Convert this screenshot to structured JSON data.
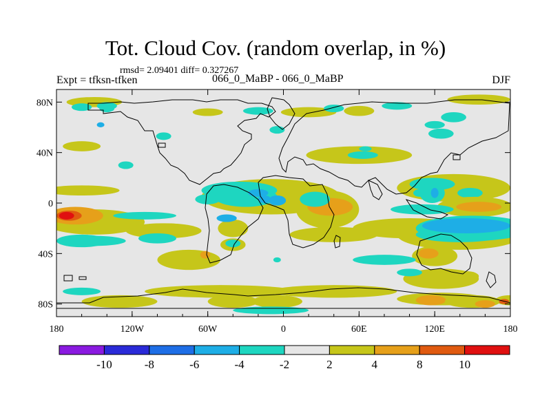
{
  "figure": {
    "title": "Tot. Cloud Cov. (random overlap, in %)",
    "subtitle": "rmsd= 2.09401 diff= 0.327267",
    "left_label": "Expt = tfksn-tfken",
    "center_label": "066_0_MaBP - 066_0_MaBP",
    "right_label": "DJF"
  },
  "map": {
    "projection": "cylindrical-equidistant",
    "lon_range": [
      -180,
      180
    ],
    "lat_range": [
      -90,
      90
    ],
    "lon_ticks": [
      {
        "value": -180,
        "label": "180"
      },
      {
        "value": -120,
        "label": "120W"
      },
      {
        "value": -60,
        "label": "60W"
      },
      {
        "value": 0,
        "label": "0"
      },
      {
        "value": 60,
        "label": "60E"
      },
      {
        "value": 120,
        "label": "120E"
      },
      {
        "value": 180,
        "label": "180"
      }
    ],
    "lat_ticks": [
      {
        "value": 80,
        "label": "80N"
      },
      {
        "value": 40,
        "label": "40N"
      },
      {
        "value": 0,
        "label": "0"
      },
      {
        "value": -40,
        "label": "40S"
      },
      {
        "value": -80,
        "label": "80S"
      }
    ],
    "background_color": "#e6e6e6",
    "coastline_color": "#000000"
  },
  "colorbar": {
    "colors": [
      "#8a1ae0",
      "#2a2ad8",
      "#1e6ee6",
      "#1eaee6",
      "#1ed6c0",
      "#e6e6e6",
      "#c6c61a",
      "#e6a01a",
      "#e05a10",
      "#e01010"
    ],
    "labels": [
      {
        "boundary": 1,
        "text": "-10"
      },
      {
        "boundary": 2,
        "text": "-8"
      },
      {
        "boundary": 3,
        "text": "-6"
      },
      {
        "boundary": 4,
        "text": "-4"
      },
      {
        "boundary": 5,
        "text": "-2"
      },
      {
        "boundary": 6,
        "text": "2"
      },
      {
        "boundary": 7,
        "text": "4"
      },
      {
        "boundary": 8,
        "text": "8"
      },
      {
        "boundary": 9,
        "text": "10"
      }
    ]
  },
  "field": {
    "blobs": [
      {
        "lon": 155,
        "lat": 82,
        "rx": 25,
        "ry": 4,
        "level": 6
      },
      {
        "lon": -150,
        "lat": 80,
        "rx": 22,
        "ry": 4,
        "level": 6
      },
      {
        "lon": -160,
        "lat": 76,
        "rx": 8,
        "ry": 3,
        "level": 4
      },
      {
        "lon": -140,
        "lat": 77,
        "rx": 8,
        "ry": 3,
        "level": 4
      },
      {
        "lon": -60,
        "lat": 72,
        "rx": 12,
        "ry": 3,
        "level": 6
      },
      {
        "lon": 20,
        "lat": 72,
        "rx": 22,
        "ry": 4,
        "level": 6
      },
      {
        "lon": 60,
        "lat": 73,
        "rx": 12,
        "ry": 4,
        "level": 6
      },
      {
        "lon": 90,
        "lat": 77,
        "rx": 12,
        "ry": 3,
        "level": 4
      },
      {
        "lon": 135,
        "lat": 68,
        "rx": 10,
        "ry": 4,
        "level": 4
      },
      {
        "lon": -160,
        "lat": 45,
        "rx": 15,
        "ry": 4,
        "level": 6
      },
      {
        "lon": -95,
        "lat": 53,
        "rx": 6,
        "ry": 3,
        "level": 4
      },
      {
        "lon": -125,
        "lat": 30,
        "rx": 6,
        "ry": 3,
        "level": 4
      },
      {
        "lon": 60,
        "lat": 38,
        "rx": 42,
        "ry": 7,
        "level": 6
      },
      {
        "lon": 63,
        "lat": 38,
        "rx": 12,
        "ry": 3,
        "level": 4
      },
      {
        "lon": 135,
        "lat": 12,
        "rx": 45,
        "ry": 11,
        "level": 6
      },
      {
        "lon": 118,
        "lat": 15,
        "rx": 18,
        "ry": 5,
        "level": 4
      },
      {
        "lon": 148,
        "lat": 8,
        "rx": 10,
        "ry": 4,
        "level": 4
      },
      {
        "lon": -160,
        "lat": 10,
        "rx": 30,
        "ry": 4,
        "level": 6
      },
      {
        "lon": -10,
        "lat": 5,
        "rx": 55,
        "ry": 14,
        "level": 6
      },
      {
        "lon": -30,
        "lat": 5,
        "rx": 25,
        "ry": 8,
        "level": 4
      },
      {
        "lon": -5,
        "lat": 2,
        "rx": 7,
        "ry": 4,
        "level": 3
      },
      {
        "lon": 35,
        "lat": -5,
        "rx": 25,
        "ry": 15,
        "level": 6
      },
      {
        "lon": 37,
        "lat": -3,
        "rx": 18,
        "ry": 7,
        "level": 7
      },
      {
        "lon": 100,
        "lat": -20,
        "rx": 45,
        "ry": 8,
        "level": 6
      },
      {
        "lon": 140,
        "lat": -25,
        "rx": 50,
        "ry": 12,
        "level": 6
      },
      {
        "lon": 140,
        "lat": -25,
        "rx": 35,
        "ry": 6,
        "level": 4
      },
      {
        "lon": 152,
        "lat": -3,
        "rx": 30,
        "ry": 8,
        "level": 6
      },
      {
        "lon": 155,
        "lat": -3,
        "rx": 18,
        "ry": 4,
        "level": 7
      },
      {
        "lon": -150,
        "lat": -15,
        "rx": 40,
        "ry": 10,
        "level": 6
      },
      {
        "lon": -165,
        "lat": -10,
        "rx": 22,
        "ry": 7,
        "level": 7
      },
      {
        "lon": -170,
        "lat": -10,
        "rx": 10,
        "ry": 4,
        "level": 8
      },
      {
        "lon": -172,
        "lat": -10,
        "rx": 6,
        "ry": 3,
        "level": 9
      },
      {
        "lon": -160,
        "lat": -30,
        "rx": 20,
        "ry": 5,
        "level": 4
      },
      {
        "lon": -95,
        "lat": -22,
        "rx": 30,
        "ry": 6,
        "level": 6
      },
      {
        "lon": -75,
        "lat": -45,
        "rx": 25,
        "ry": 8,
        "level": 6
      },
      {
        "lon": -62,
        "lat": -41,
        "rx": 4,
        "ry": 3,
        "level": 7
      },
      {
        "lon": -100,
        "lat": -28,
        "rx": 15,
        "ry": 4,
        "level": 4
      },
      {
        "lon": -40,
        "lat": -20,
        "rx": 12,
        "ry": 7,
        "level": 6
      },
      {
        "lon": -40,
        "lat": -33,
        "rx": 10,
        "ry": 5,
        "level": 6
      },
      {
        "lon": -40,
        "lat": -32,
        "rx": 6,
        "ry": 3,
        "level": 4
      },
      {
        "lon": 40,
        "lat": -25,
        "rx": 35,
        "ry": 6,
        "level": 6
      },
      {
        "lon": 120,
        "lat": -42,
        "rx": 18,
        "ry": 8,
        "level": 6
      },
      {
        "lon": 115,
        "lat": -40,
        "rx": 8,
        "ry": 4,
        "level": 7
      },
      {
        "lon": 125,
        "lat": -60,
        "rx": 30,
        "ry": 8,
        "level": 6
      },
      {
        "lon": 145,
        "lat": -58,
        "rx": 10,
        "ry": 4,
        "level": 6
      },
      {
        "lon": -50,
        "lat": -70,
        "rx": 60,
        "ry": 5,
        "level": 6
      },
      {
        "lon": 40,
        "lat": -70,
        "rx": 50,
        "ry": 5,
        "level": 6
      },
      {
        "lon": -130,
        "lat": -78,
        "rx": 30,
        "ry": 5,
        "level": 6
      },
      {
        "lon": -40,
        "lat": -78,
        "rx": 20,
        "ry": 5,
        "level": 6
      },
      {
        "lon": -5,
        "lat": -78,
        "rx": 20,
        "ry": 5,
        "level": 6
      },
      {
        "lon": 125,
        "lat": -76,
        "rx": 35,
        "ry": 5,
        "level": 6
      },
      {
        "lon": 117,
        "lat": -77,
        "rx": 12,
        "ry": 4,
        "level": 7
      },
      {
        "lon": 150,
        "lat": -78,
        "rx": 22,
        "ry": 5,
        "level": 6
      },
      {
        "lon": 160,
        "lat": -80,
        "rx": 8,
        "ry": 3,
        "level": 7
      },
      {
        "lon": 180,
        "lat": -77,
        "rx": 12,
        "ry": 4,
        "level": 6
      },
      {
        "lon": 175,
        "lat": -78,
        "rx": 4,
        "ry": 2,
        "level": 8
      },
      {
        "lon": -160,
        "lat": -70,
        "rx": 15,
        "ry": 3,
        "level": 4
      },
      {
        "lon": -10,
        "lat": -85,
        "rx": 30,
        "ry": 3,
        "level": 4
      },
      {
        "lon": -145,
        "lat": 62,
        "rx": 3,
        "ry": 2,
        "level": 3
      },
      {
        "lon": -140,
        "lat": 75,
        "rx": 6,
        "ry": 3,
        "level": 4
      },
      {
        "lon": -35,
        "lat": 10,
        "rx": 30,
        "ry": 7,
        "level": 4
      },
      {
        "lon": -20,
        "lat": 8,
        "rx": 8,
        "ry": 3,
        "level": 3
      },
      {
        "lon": -60,
        "lat": 3,
        "rx": 10,
        "ry": 4,
        "level": 4
      },
      {
        "lon": -15,
        "lat": 3,
        "rx": 5,
        "ry": 3,
        "level": 3
      },
      {
        "lon": -45,
        "lat": -12,
        "rx": 8,
        "ry": 3,
        "level": 3
      },
      {
        "lon": -110,
        "lat": -10,
        "rx": 25,
        "ry": 3,
        "level": 4
      },
      {
        "lon": -20,
        "lat": 73,
        "rx": 12,
        "ry": 3,
        "level": 4
      },
      {
        "lon": -5,
        "lat": 58,
        "rx": 6,
        "ry": 3,
        "level": 4
      },
      {
        "lon": 40,
        "lat": 75,
        "rx": 8,
        "ry": 3,
        "level": 4
      },
      {
        "lon": 120,
        "lat": 62,
        "rx": 8,
        "ry": 3,
        "level": 4
      },
      {
        "lon": 125,
        "lat": 55,
        "rx": 10,
        "ry": 4,
        "level": 4
      },
      {
        "lon": 65,
        "lat": 43,
        "rx": 5,
        "ry": 2,
        "level": 4
      },
      {
        "lon": 118,
        "lat": 8,
        "rx": 10,
        "ry": 8,
        "level": 4
      },
      {
        "lon": 120,
        "lat": 8,
        "rx": 3,
        "ry": 4,
        "level": 3
      },
      {
        "lon": 108,
        "lat": 8,
        "rx": 5,
        "ry": 3,
        "level": 4
      },
      {
        "lon": 150,
        "lat": -20,
        "rx": 45,
        "ry": 10,
        "level": 4
      },
      {
        "lon": 145,
        "lat": -18,
        "rx": 35,
        "ry": 6,
        "level": 3
      },
      {
        "lon": 110,
        "lat": -5,
        "rx": 25,
        "ry": 4,
        "level": 4
      },
      {
        "lon": -150,
        "lat": -30,
        "rx": 25,
        "ry": 4,
        "level": 4
      },
      {
        "lon": 25,
        "lat": 3,
        "rx": 12,
        "ry": 6,
        "level": 4
      },
      {
        "lon": 80,
        "lat": -45,
        "rx": 25,
        "ry": 4,
        "level": 4
      },
      {
        "lon": -5,
        "lat": -45,
        "rx": 3,
        "ry": 2,
        "level": 4
      },
      {
        "lon": 100,
        "lat": -55,
        "rx": 10,
        "ry": 3,
        "level": 4
      }
    ]
  }
}
